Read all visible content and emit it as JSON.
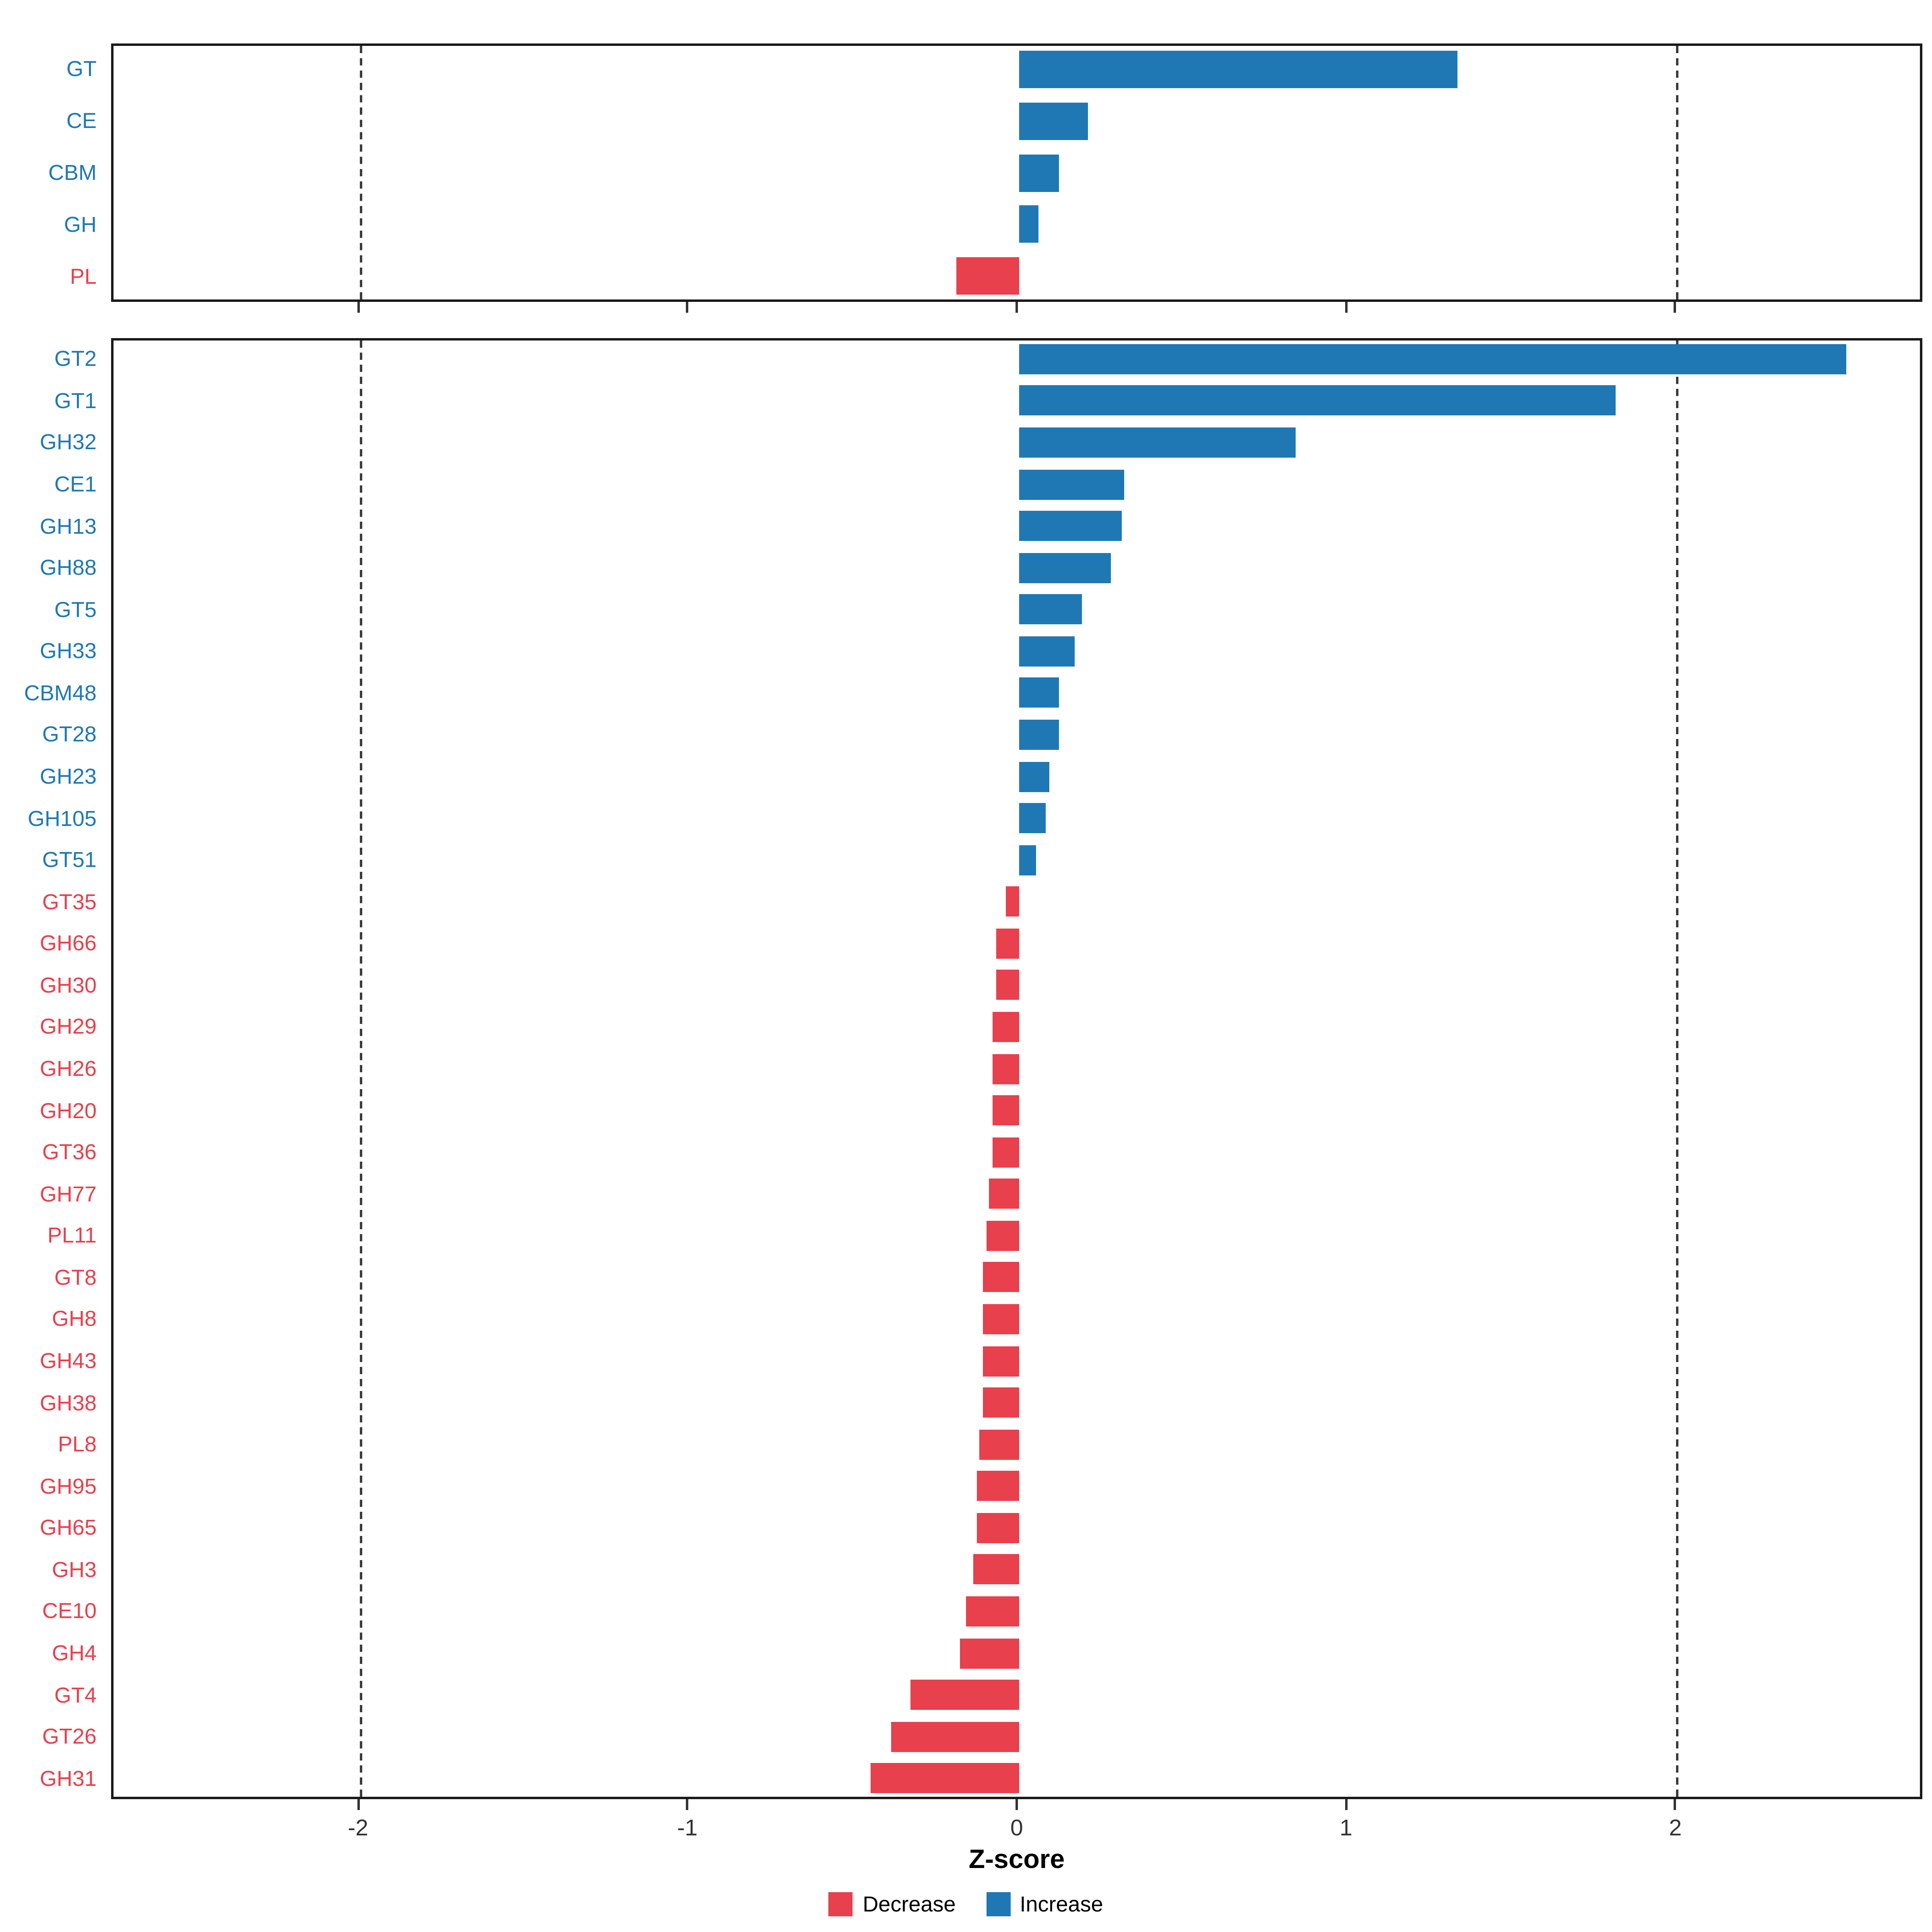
{
  "figure": {
    "xlabel": "Z-score",
    "x_ticks": [
      "-2",
      "-1",
      "0",
      "1",
      "2"
    ],
    "x_tick_values": [
      -2,
      -1,
      0,
      1,
      2
    ],
    "xlim": [
      -2.75,
      2.75
    ],
    "dashed_lines": [
      -2,
      2
    ],
    "colors": {
      "increase": "#1f78b4",
      "decrease": "#e8404d",
      "panel_border": "#1a1a1a",
      "guide": "#3c3c3c"
    },
    "legend": [
      {
        "label": "Decrease",
        "key": "decrease"
      },
      {
        "label": "Increase",
        "key": "increase"
      }
    ]
  },
  "chart_data": [
    {
      "type": "bar",
      "orientation": "horizontal",
      "panel": "top",
      "title": "",
      "xlabel": "Z-score",
      "ylabel": "",
      "xlim": [
        -2.75,
        2.75
      ],
      "categories": [
        "GT",
        "CE",
        "CBM",
        "GH",
        "PL"
      ],
      "values": [
        1.33,
        0.21,
        0.12,
        0.06,
        -0.19
      ]
    },
    {
      "type": "bar",
      "orientation": "horizontal",
      "panel": "bottom",
      "title": "",
      "xlabel": "Z-score",
      "ylabel": "",
      "xlim": [
        -2.75,
        2.75
      ],
      "categories": [
        "GT2",
        "GT1",
        "GH32",
        "CE1",
        "GH13",
        "GH88",
        "GT5",
        "GH33",
        "CBM48",
        "GT28",
        "GH23",
        "GH105",
        "GT51",
        "GT35",
        "GH66",
        "GH30",
        "GH29",
        "GH26",
        "GH20",
        "GT36",
        "GH77",
        "PL11",
        "GT8",
        "GH8",
        "GH43",
        "GH38",
        "PL8",
        "GH95",
        "GH65",
        "GH3",
        "CE10",
        "GH4",
        "GT4",
        "GT26",
        "GH31"
      ],
      "values": [
        2.51,
        1.81,
        0.84,
        0.32,
        0.31,
        0.28,
        0.19,
        0.17,
        0.12,
        0.12,
        0.09,
        0.08,
        0.05,
        -0.04,
        -0.07,
        -0.07,
        -0.08,
        -0.08,
        -0.08,
        -0.08,
        -0.09,
        -0.1,
        -0.11,
        -0.11,
        -0.11,
        -0.11,
        -0.12,
        -0.13,
        -0.13,
        -0.14,
        -0.16,
        -0.18,
        -0.33,
        -0.39,
        -0.45
      ]
    }
  ]
}
